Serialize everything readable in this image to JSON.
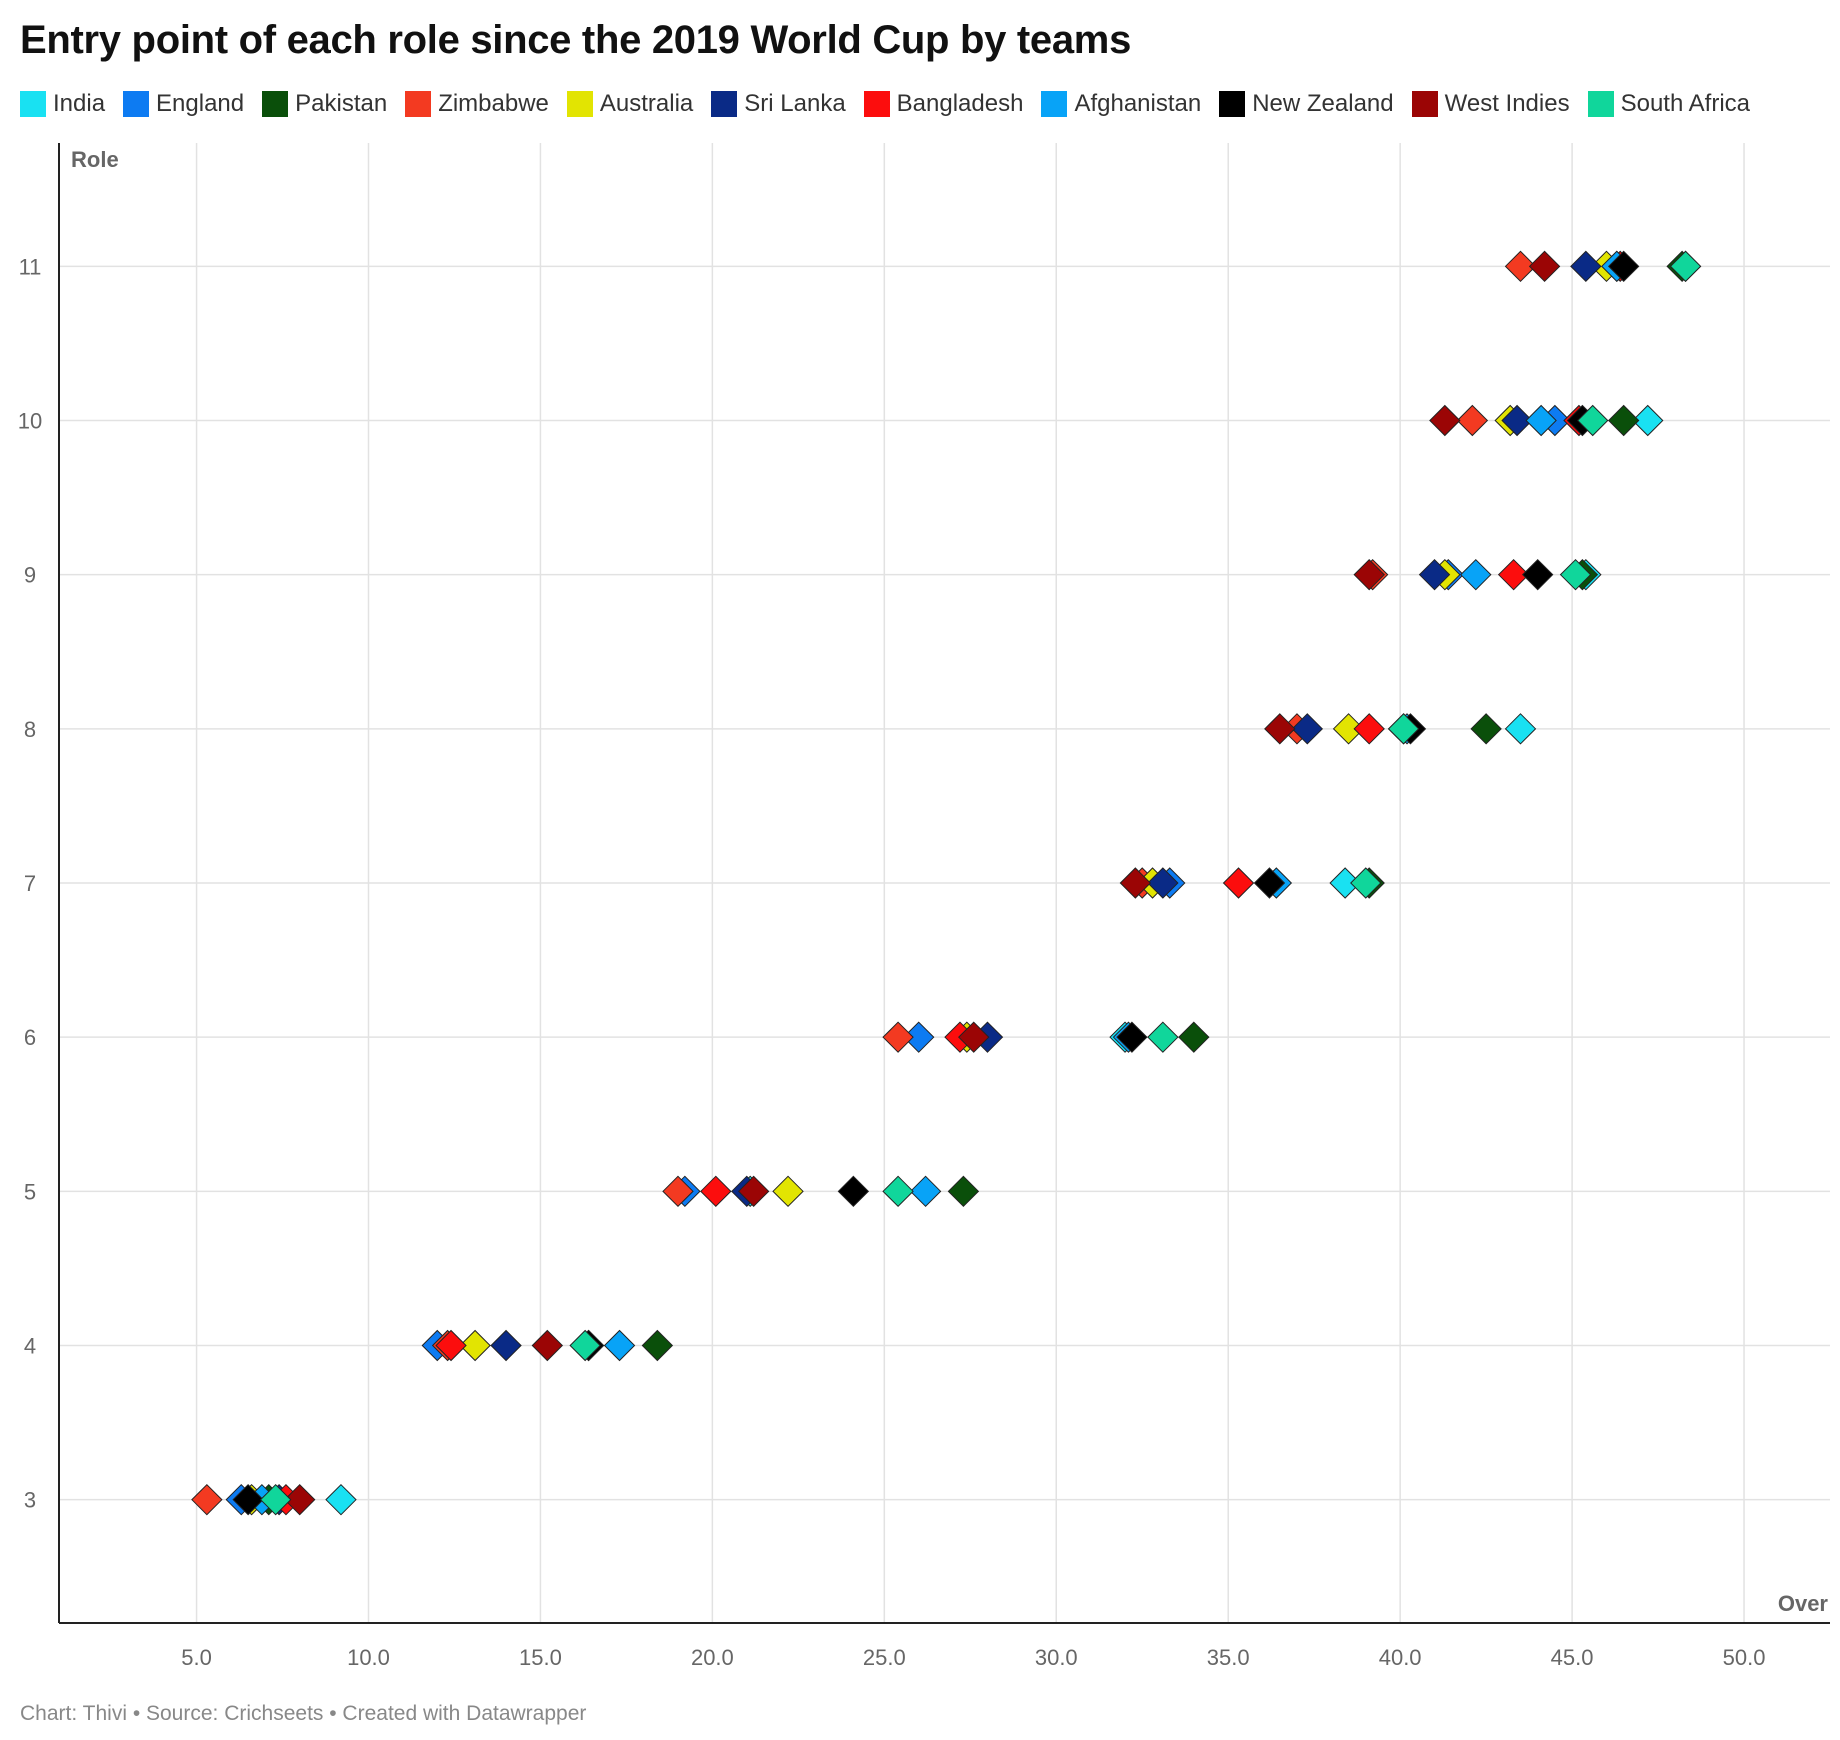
{
  "title": "Entry point of each role since the 2019 World Cup by teams",
  "footer": "Chart: Thivi • Source: Crichseets • Created with Datawrapper",
  "chart_data": {
    "type": "scatter",
    "title": "Entry point of each role since the 2019 World Cup by teams",
    "xlabel": "Over",
    "ylabel": "Role",
    "xlim": [
      1,
      52.5
    ],
    "ylim": [
      2.2,
      11.8
    ],
    "x_ticks": [
      "5.0",
      "10.0",
      "15.0",
      "20.0",
      "25.0",
      "30.0",
      "35.0",
      "40.0",
      "45.0",
      "50.0"
    ],
    "y_ticks": [
      "3",
      "4",
      "5",
      "6",
      "7",
      "8",
      "9",
      "10",
      "11"
    ],
    "grid": true,
    "legend_position": "top",
    "marker": "diamond",
    "series": [
      {
        "name": "India",
        "color": "#19e1f2",
        "points": [
          [
            9.2,
            3
          ],
          [
            16.4,
            4
          ],
          [
            21.1,
            5
          ],
          [
            32.0,
            6
          ],
          [
            38.4,
            7
          ],
          [
            43.5,
            8
          ],
          [
            45.4,
            9
          ],
          [
            47.2,
            10
          ],
          [
            48.3,
            11
          ]
        ]
      },
      {
        "name": "England",
        "color": "#0d7bf2",
        "points": [
          [
            6.3,
            3
          ],
          [
            12.0,
            4
          ],
          [
            19.2,
            5
          ],
          [
            26.0,
            6
          ],
          [
            33.3,
            7
          ],
          [
            40.1,
            8
          ],
          [
            41.4,
            9
          ],
          [
            44.5,
            10
          ],
          [
            46.3,
            11
          ]
        ]
      },
      {
        "name": "Pakistan",
        "color": "#0a4f0a",
        "points": [
          [
            7.1,
            3
          ],
          [
            18.4,
            4
          ],
          [
            27.3,
            5
          ],
          [
            34.0,
            6
          ],
          [
            39.1,
            7
          ],
          [
            42.5,
            8
          ],
          [
            45.3,
            9
          ],
          [
            46.5,
            10
          ],
          [
            48.2,
            11
          ]
        ]
      },
      {
        "name": "Zimbabwe",
        "color": "#f33a21",
        "points": [
          [
            5.3,
            3
          ],
          [
            12.3,
            4
          ],
          [
            19.0,
            5
          ],
          [
            25.4,
            6
          ],
          [
            32.5,
            7
          ],
          [
            37.0,
            8
          ],
          [
            39.2,
            9
          ],
          [
            42.1,
            10
          ],
          [
            43.5,
            11
          ]
        ]
      },
      {
        "name": "Australia",
        "color": "#e2e402",
        "points": [
          [
            6.6,
            3
          ],
          [
            13.1,
            4
          ],
          [
            22.2,
            5
          ],
          [
            27.4,
            6
          ],
          [
            32.8,
            7
          ],
          [
            38.5,
            8
          ],
          [
            41.3,
            9
          ],
          [
            43.2,
            10
          ],
          [
            46.0,
            11
          ]
        ]
      },
      {
        "name": "Sri Lanka",
        "color": "#0a2a86",
        "points": [
          [
            7.4,
            3
          ],
          [
            14.0,
            4
          ],
          [
            21.0,
            5
          ],
          [
            28.0,
            6
          ],
          [
            33.1,
            7
          ],
          [
            37.3,
            8
          ],
          [
            41.0,
            9
          ],
          [
            43.4,
            10
          ],
          [
            45.4,
            11
          ]
        ]
      },
      {
        "name": "Bangladesh",
        "color": "#fc0d0d",
        "points": [
          [
            7.6,
            3
          ],
          [
            12.4,
            4
          ],
          [
            20.1,
            5
          ],
          [
            27.2,
            6
          ],
          [
            35.3,
            7
          ],
          [
            39.1,
            8
          ],
          [
            43.3,
            9
          ],
          [
            45.2,
            10
          ],
          [
            46.4,
            11
          ]
        ]
      },
      {
        "name": "Afghanistan",
        "color": "#08a3f7",
        "points": [
          [
            6.9,
            3
          ],
          [
            17.3,
            4
          ],
          [
            26.2,
            5
          ],
          [
            32.1,
            6
          ],
          [
            36.4,
            7
          ],
          [
            40.2,
            8
          ],
          [
            42.2,
            9
          ],
          [
            44.1,
            10
          ],
          [
            46.3,
            11
          ]
        ]
      },
      {
        "name": "New Zealand",
        "color": "#000000",
        "points": [
          [
            6.5,
            3
          ],
          [
            16.4,
            4
          ],
          [
            24.1,
            5
          ],
          [
            32.2,
            6
          ],
          [
            36.2,
            7
          ],
          [
            40.3,
            8
          ],
          [
            44.0,
            9
          ],
          [
            45.3,
            10
          ],
          [
            46.5,
            11
          ]
        ]
      },
      {
        "name": "West Indies",
        "color": "#9b0505",
        "points": [
          [
            8.0,
            3
          ],
          [
            15.2,
            4
          ],
          [
            21.2,
            5
          ],
          [
            27.6,
            6
          ],
          [
            32.3,
            7
          ],
          [
            36.5,
            8
          ],
          [
            39.1,
            9
          ],
          [
            41.3,
            10
          ],
          [
            44.2,
            11
          ]
        ]
      },
      {
        "name": "South Africa",
        "color": "#10d69b",
        "points": [
          [
            7.3,
            3
          ],
          [
            16.3,
            4
          ],
          [
            25.4,
            5
          ],
          [
            33.1,
            6
          ],
          [
            39.0,
            7
          ],
          [
            40.1,
            8
          ],
          [
            45.1,
            9
          ],
          [
            45.6,
            10
          ],
          [
            48.3,
            11
          ]
        ]
      }
    ]
  }
}
